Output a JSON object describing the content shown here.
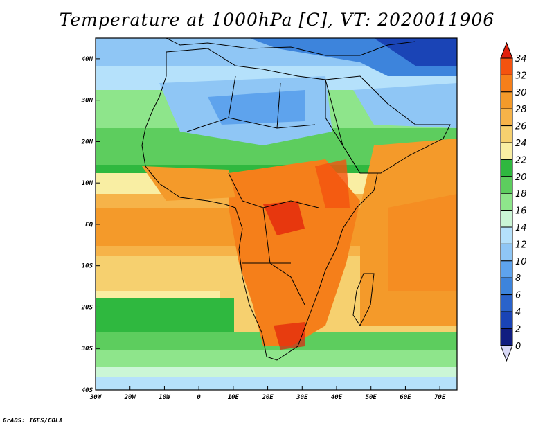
{
  "title": "Temperature at 1000hPa [C], VT: 2020011906",
  "credit": "GrADS: IGES/COLA",
  "map": {
    "lon_range": [
      -30,
      75
    ],
    "lat_range": [
      -40,
      45
    ],
    "lon_ticks": [
      {
        "value": -30,
        "label": "30W"
      },
      {
        "value": -20,
        "label": "20W"
      },
      {
        "value": -10,
        "label": "10W"
      },
      {
        "value": 0,
        "label": "0"
      },
      {
        "value": 10,
        "label": "10E"
      },
      {
        "value": 20,
        "label": "20E"
      },
      {
        "value": 30,
        "label": "30E"
      },
      {
        "value": 40,
        "label": "40E"
      },
      {
        "value": 50,
        "label": "50E"
      },
      {
        "value": 60,
        "label": "60E"
      },
      {
        "value": 70,
        "label": "70E"
      }
    ],
    "lat_ticks": [
      {
        "value": 40,
        "label": "40N"
      },
      {
        "value": 30,
        "label": "30N"
      },
      {
        "value": 20,
        "label": "20N"
      },
      {
        "value": 10,
        "label": "10N"
      },
      {
        "value": 0,
        "label": "EQ"
      },
      {
        "value": -10,
        "label": "10S"
      },
      {
        "value": -20,
        "label": "20S"
      },
      {
        "value": -30,
        "label": "30S"
      },
      {
        "value": -40,
        "label": "40S"
      }
    ]
  },
  "colorbar": {
    "labels": [
      "34",
      "32",
      "30",
      "28",
      "26",
      "24",
      "22",
      "20",
      "18",
      "16",
      "14",
      "12",
      "10",
      "8",
      "6",
      "4",
      "2",
      "0"
    ],
    "colors": [
      "#e11f0b",
      "#f4530f",
      "#f57f1a",
      "#f49a2a",
      "#f6b349",
      "#f6d06f",
      "#f9eea3",
      "#2fb83f",
      "#5dcd5e",
      "#8ee58b",
      "#cbf6d6",
      "#b5e1fb",
      "#8fc6f5",
      "#5ea3ed",
      "#3d84dc",
      "#2a63cb",
      "#1a44b6",
      "#101d80",
      "#d9d9f6"
    ]
  }
}
